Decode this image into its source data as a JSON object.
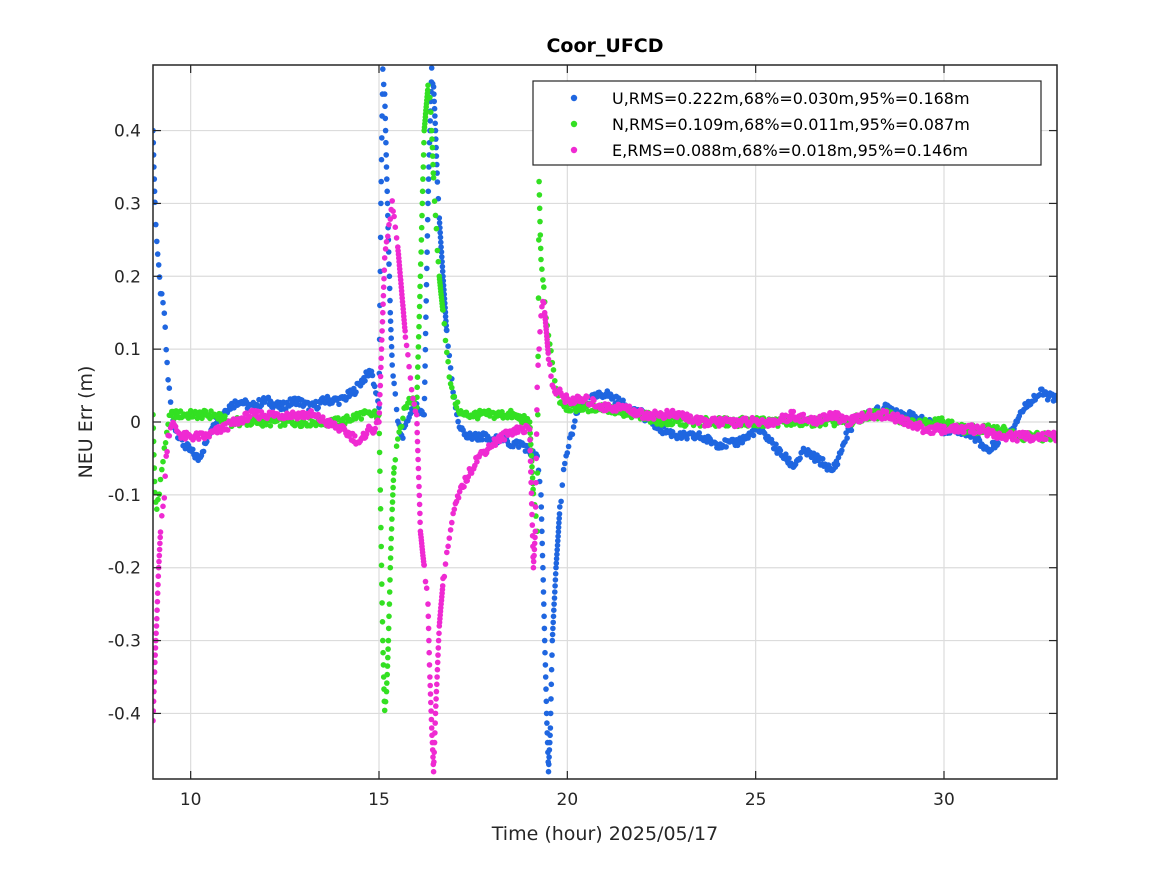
{
  "chart_data": {
    "type": "scatter",
    "title": "Coor_UFCD",
    "xlabel": "Time (hour)  2025/05/17",
    "ylabel": "NEU Err (m)",
    "xlim": [
      9,
      33
    ],
    "ylim": [
      -0.49,
      0.49
    ],
    "xticks": [
      10,
      15,
      20,
      25,
      30
    ],
    "yticks": [
      -0.4,
      -0.3,
      -0.2,
      -0.1,
      0,
      0.1,
      0.2,
      0.3,
      0.4
    ],
    "ytick_labels": [
      "-0.4",
      "-0.3",
      "-0.2",
      "-0.1",
      "0",
      "0.1",
      "0.2",
      "0.3",
      "0.4"
    ],
    "grid": true,
    "legend_position": "top-right",
    "series": [
      {
        "name": "U,RMS=0.222m,68%=0.030m,95%=0.168m",
        "color": "#1f66e0",
        "points": [
          [
            9.0,
            0.4
          ],
          [
            9.05,
            0.3
          ],
          [
            9.1,
            0.25
          ],
          [
            9.15,
            0.21
          ],
          [
            9.2,
            0.18
          ],
          [
            9.3,
            0.15
          ],
          [
            9.35,
            0.1
          ],
          [
            9.4,
            0.06
          ],
          [
            9.5,
            0.01
          ],
          [
            9.6,
            -0.01
          ],
          [
            9.8,
            -0.03
          ],
          [
            10.0,
            -0.04
          ],
          [
            10.2,
            -0.05
          ],
          [
            10.4,
            -0.03
          ],
          [
            10.6,
            0.0
          ],
          [
            10.8,
            0.01
          ],
          [
            11.0,
            0.02
          ],
          [
            11.3,
            0.03
          ],
          [
            11.6,
            0.02
          ],
          [
            12.0,
            0.03
          ],
          [
            12.4,
            0.02
          ],
          [
            12.8,
            0.03
          ],
          [
            13.2,
            0.02
          ],
          [
            13.6,
            0.03
          ],
          [
            14.0,
            0.03
          ],
          [
            14.3,
            0.04
          ],
          [
            14.6,
            0.06
          ],
          [
            14.8,
            0.07
          ],
          [
            15.0,
            0.02
          ],
          [
            15.05,
            0.3
          ],
          [
            15.1,
            0.48
          ],
          [
            15.15,
            0.45
          ],
          [
            15.2,
            0.35
          ],
          [
            15.25,
            0.25
          ],
          [
            15.3,
            0.15
          ],
          [
            15.35,
            0.08
          ],
          [
            15.4,
            0.05
          ],
          [
            15.5,
            0.0
          ],
          [
            15.6,
            -0.02
          ],
          [
            15.7,
            -0.01
          ],
          [
            15.8,
            0.01
          ],
          [
            15.9,
            0.02
          ],
          [
            16.0,
            0.02
          ],
          [
            16.2,
            0.01
          ],
          [
            16.3,
            0.3
          ],
          [
            16.35,
            0.4
          ],
          [
            16.4,
            0.48
          ],
          [
            16.45,
            0.46
          ],
          [
            16.5,
            0.4
          ],
          [
            16.55,
            0.33
          ],
          [
            16.6,
            0.28
          ],
          [
            16.7,
            0.2
          ],
          [
            16.8,
            0.12
          ],
          [
            16.9,
            0.07
          ],
          [
            17.0,
            0.03
          ],
          [
            17.1,
            0.0
          ],
          [
            17.2,
            -0.01
          ],
          [
            17.3,
            -0.02
          ],
          [
            17.5,
            -0.02
          ],
          [
            17.8,
            -0.02
          ],
          [
            18.0,
            -0.03
          ],
          [
            18.2,
            -0.02
          ],
          [
            18.5,
            -0.03
          ],
          [
            18.8,
            -0.03
          ],
          [
            19.0,
            -0.04
          ],
          [
            19.2,
            -0.05
          ],
          [
            19.3,
            -0.1
          ],
          [
            19.4,
            -0.3
          ],
          [
            19.45,
            -0.4
          ],
          [
            19.5,
            -0.48
          ],
          [
            19.55,
            -0.42
          ],
          [
            19.6,
            -0.3
          ],
          [
            19.7,
            -0.2
          ],
          [
            19.8,
            -0.12
          ],
          [
            19.9,
            -0.07
          ],
          [
            20.0,
            -0.04
          ],
          [
            20.1,
            -0.02
          ],
          [
            20.2,
            0.0
          ],
          [
            20.3,
            0.02
          ],
          [
            20.6,
            0.03
          ],
          [
            21.0,
            0.04
          ],
          [
            21.3,
            0.03
          ],
          [
            21.6,
            0.02
          ],
          [
            22.0,
            0.01
          ],
          [
            22.5,
            -0.01
          ],
          [
            23.0,
            -0.02
          ],
          [
            23.5,
            -0.02
          ],
          [
            24.0,
            -0.03
          ],
          [
            24.4,
            -0.03
          ],
          [
            24.8,
            -0.02
          ],
          [
            25.0,
            -0.01
          ],
          [
            25.3,
            -0.02
          ],
          [
            25.6,
            -0.04
          ],
          [
            25.8,
            -0.05
          ],
          [
            26.0,
            -0.06
          ],
          [
            26.3,
            -0.04
          ],
          [
            26.6,
            -0.05
          ],
          [
            26.9,
            -0.06
          ],
          [
            27.0,
            -0.07
          ],
          [
            27.2,
            -0.05
          ],
          [
            27.4,
            -0.02
          ],
          [
            27.6,
            0.0
          ],
          [
            28.0,
            0.01
          ],
          [
            28.5,
            0.02
          ],
          [
            29.0,
            0.01
          ],
          [
            29.5,
            0.0
          ],
          [
            30.0,
            -0.01
          ],
          [
            30.4,
            -0.01
          ],
          [
            30.8,
            -0.02
          ],
          [
            31.0,
            -0.03
          ],
          [
            31.2,
            -0.04
          ],
          [
            31.5,
            -0.02
          ],
          [
            31.8,
            -0.01
          ],
          [
            32.0,
            0.01
          ],
          [
            32.3,
            0.03
          ],
          [
            32.6,
            0.04
          ],
          [
            33.0,
            0.03
          ]
        ]
      },
      {
        "name": "N,RMS=0.109m,68%=0.011m,95%=0.087m",
        "color": "#33e022",
        "points": [
          [
            9.0,
            0.01
          ],
          [
            9.05,
            -0.1
          ],
          [
            9.1,
            -0.12
          ],
          [
            9.2,
            -0.08
          ],
          [
            9.3,
            -0.04
          ],
          [
            9.4,
            0.0
          ],
          [
            9.5,
            0.01
          ],
          [
            9.7,
            0.01
          ],
          [
            10.0,
            0.01
          ],
          [
            10.3,
            0.01
          ],
          [
            10.6,
            0.01
          ],
          [
            11.0,
            0.0
          ],
          [
            11.5,
            0.0
          ],
          [
            12.0,
            0.0
          ],
          [
            12.5,
            0.0
          ],
          [
            13.0,
            0.0
          ],
          [
            13.5,
            0.0
          ],
          [
            14.0,
            0.0
          ],
          [
            14.5,
            0.01
          ],
          [
            14.8,
            0.01
          ],
          [
            15.0,
            0.01
          ],
          [
            15.1,
            -0.3
          ],
          [
            15.15,
            -0.4
          ],
          [
            15.2,
            -0.37
          ],
          [
            15.25,
            -0.3
          ],
          [
            15.3,
            -0.2
          ],
          [
            15.35,
            -0.12
          ],
          [
            15.4,
            -0.06
          ],
          [
            15.5,
            -0.02
          ],
          [
            15.6,
            0.0
          ],
          [
            15.7,
            0.02
          ],
          [
            15.8,
            0.03
          ],
          [
            15.9,
            0.03
          ],
          [
            16.0,
            0.02
          ],
          [
            16.1,
            0.2
          ],
          [
            16.15,
            0.3
          ],
          [
            16.2,
            0.4
          ],
          [
            16.3,
            0.46
          ],
          [
            16.35,
            0.44
          ],
          [
            16.4,
            0.4
          ],
          [
            16.45,
            0.33
          ],
          [
            16.5,
            0.28
          ],
          [
            16.55,
            0.24
          ],
          [
            16.6,
            0.2
          ],
          [
            16.7,
            0.15
          ],
          [
            16.8,
            0.1
          ],
          [
            16.9,
            0.05
          ],
          [
            17.0,
            0.03
          ],
          [
            17.2,
            0.01
          ],
          [
            17.5,
            0.01
          ],
          [
            18.0,
            0.01
          ],
          [
            18.5,
            0.01
          ],
          [
            19.0,
            0.0
          ],
          [
            19.1,
            -0.1
          ],
          [
            19.2,
            -0.15
          ],
          [
            19.25,
            0.33
          ],
          [
            19.3,
            0.22
          ],
          [
            19.35,
            0.2
          ],
          [
            19.4,
            0.16
          ],
          [
            19.5,
            0.12
          ],
          [
            19.6,
            0.08
          ],
          [
            19.7,
            0.05
          ],
          [
            19.8,
            0.03
          ],
          [
            20.0,
            0.02
          ],
          [
            20.5,
            0.02
          ],
          [
            21.0,
            0.02
          ],
          [
            21.5,
            0.01
          ],
          [
            22.0,
            0.01
          ],
          [
            22.5,
            0.0
          ],
          [
            23.0,
            0.0
          ],
          [
            23.5,
            0.0
          ],
          [
            24.0,
            0.0
          ],
          [
            24.5,
            0.0
          ],
          [
            25.0,
            0.0
          ],
          [
            25.5,
            0.0
          ],
          [
            26.0,
            0.0
          ],
          [
            26.5,
            0.0
          ],
          [
            27.0,
            0.0
          ],
          [
            27.5,
            0.0
          ],
          [
            28.0,
            0.01
          ],
          [
            28.5,
            0.01
          ],
          [
            29.0,
            0.0
          ],
          [
            29.5,
            0.0
          ],
          [
            30.0,
            0.0
          ],
          [
            30.5,
            -0.01
          ],
          [
            31.0,
            -0.01
          ],
          [
            31.5,
            -0.01
          ],
          [
            32.0,
            -0.02
          ],
          [
            32.5,
            -0.02
          ],
          [
            33.0,
            -0.02
          ]
        ]
      },
      {
        "name": "E,RMS=0.088m,68%=0.018m,95%=0.146m",
        "color": "#ef2ad2",
        "points": [
          [
            9.0,
            -0.41
          ],
          [
            9.05,
            -0.33
          ],
          [
            9.1,
            -0.27
          ],
          [
            9.15,
            -0.2
          ],
          [
            9.2,
            -0.15
          ],
          [
            9.3,
            -0.1
          ],
          [
            9.35,
            -0.05
          ],
          [
            9.4,
            -0.02
          ],
          [
            9.5,
            0.0
          ],
          [
            9.6,
            -0.01
          ],
          [
            9.8,
            -0.02
          ],
          [
            10.0,
            -0.02
          ],
          [
            10.4,
            -0.02
          ],
          [
            10.8,
            -0.01
          ],
          [
            11.2,
            0.0
          ],
          [
            11.6,
            0.01
          ],
          [
            12.0,
            0.01
          ],
          [
            12.4,
            0.01
          ],
          [
            12.8,
            0.01
          ],
          [
            13.2,
            0.01
          ],
          [
            13.6,
            0.0
          ],
          [
            14.0,
            -0.01
          ],
          [
            14.3,
            -0.02
          ],
          [
            14.5,
            -0.03
          ],
          [
            14.7,
            -0.01
          ],
          [
            14.9,
            -0.01
          ],
          [
            15.0,
            0.0
          ],
          [
            15.1,
            0.15
          ],
          [
            15.15,
            0.22
          ],
          [
            15.2,
            0.25
          ],
          [
            15.3,
            0.28
          ],
          [
            15.35,
            0.3
          ],
          [
            15.4,
            0.28
          ],
          [
            15.5,
            0.24
          ],
          [
            15.6,
            0.18
          ],
          [
            15.7,
            0.12
          ],
          [
            15.8,
            0.07
          ],
          [
            15.9,
            0.03
          ],
          [
            16.0,
            0.01
          ],
          [
            16.1,
            -0.15
          ],
          [
            16.2,
            -0.2
          ],
          [
            16.3,
            -0.25
          ],
          [
            16.35,
            -0.35
          ],
          [
            16.4,
            -0.42
          ],
          [
            16.45,
            -0.48
          ],
          [
            16.5,
            -0.4
          ],
          [
            16.55,
            -0.34
          ],
          [
            16.6,
            -0.28
          ],
          [
            16.7,
            -0.22
          ],
          [
            16.8,
            -0.18
          ],
          [
            16.9,
            -0.15
          ],
          [
            17.0,
            -0.12
          ],
          [
            17.2,
            -0.09
          ],
          [
            17.4,
            -0.07
          ],
          [
            17.6,
            -0.05
          ],
          [
            17.8,
            -0.04
          ],
          [
            18.0,
            -0.03
          ],
          [
            18.3,
            -0.02
          ],
          [
            18.6,
            -0.01
          ],
          [
            18.9,
            -0.01
          ],
          [
            19.0,
            -0.01
          ],
          [
            19.1,
            -0.2
          ],
          [
            19.15,
            -0.15
          ],
          [
            19.2,
            0.05
          ],
          [
            19.25,
            0.1
          ],
          [
            19.3,
            0.15
          ],
          [
            19.35,
            0.17
          ],
          [
            19.4,
            0.15
          ],
          [
            19.5,
            0.09
          ],
          [
            19.6,
            0.05
          ],
          [
            19.7,
            0.04
          ],
          [
            19.8,
            0.04
          ],
          [
            20.0,
            0.03
          ],
          [
            20.5,
            0.03
          ],
          [
            21.0,
            0.02
          ],
          [
            21.5,
            0.02
          ],
          [
            22.0,
            0.01
          ],
          [
            22.5,
            0.01
          ],
          [
            23.0,
            0.01
          ],
          [
            23.5,
            0.0
          ],
          [
            24.0,
            0.0
          ],
          [
            24.5,
            0.0
          ],
          [
            25.0,
            0.0
          ],
          [
            25.5,
            0.0
          ],
          [
            26.0,
            0.01
          ],
          [
            26.5,
            0.0
          ],
          [
            27.0,
            0.01
          ],
          [
            27.5,
            0.0
          ],
          [
            28.0,
            0.01
          ],
          [
            28.5,
            0.01
          ],
          [
            29.0,
            0.0
          ],
          [
            29.5,
            -0.01
          ],
          [
            30.0,
            -0.01
          ],
          [
            30.5,
            -0.01
          ],
          [
            31.0,
            -0.01
          ],
          [
            31.5,
            -0.02
          ],
          [
            32.0,
            -0.02
          ],
          [
            32.5,
            -0.02
          ],
          [
            33.0,
            -0.02
          ]
        ]
      }
    ]
  }
}
